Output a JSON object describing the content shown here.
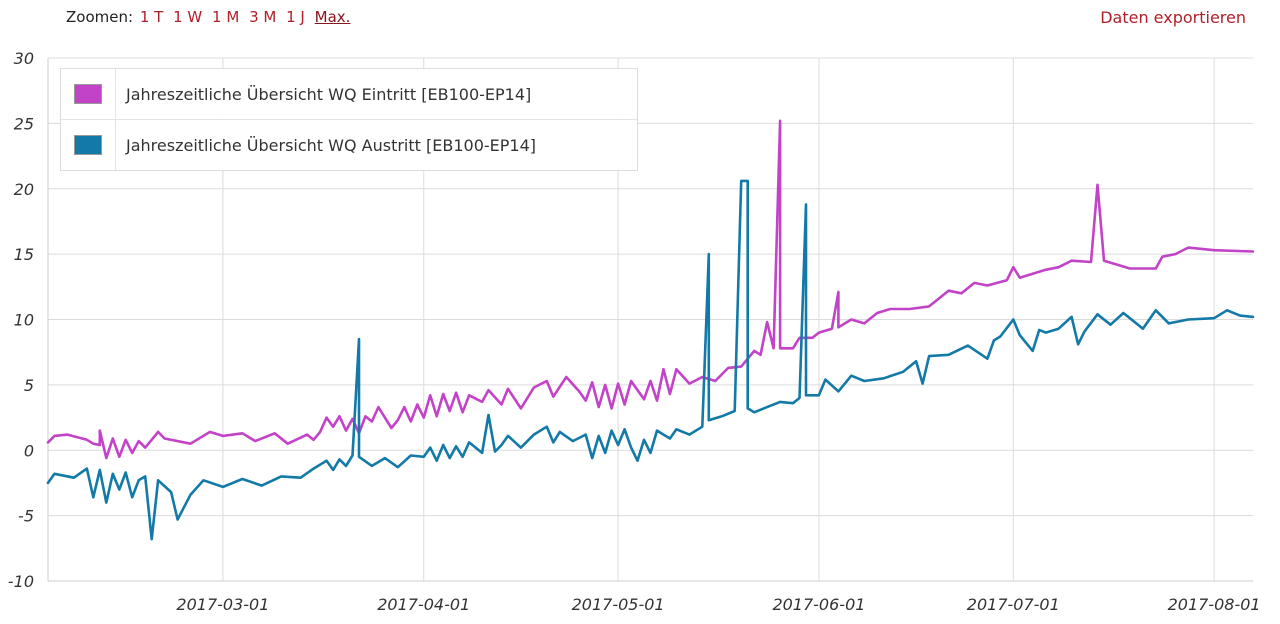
{
  "toolbar": {
    "zoom_label": "Zoomen:",
    "zoom_options": [
      {
        "label": "1 T",
        "active": false
      },
      {
        "label": "1 W",
        "active": false
      },
      {
        "label": "1 M",
        "active": false
      },
      {
        "label": "3 M",
        "active": false
      },
      {
        "label": "1 J",
        "active": false
      },
      {
        "label": "Max.",
        "active": true
      }
    ],
    "export_label": "Daten exportieren"
  },
  "chart_data": {
    "type": "line",
    "title": "",
    "xlabel": "",
    "ylabel": "",
    "x_type": "date",
    "xlim": [
      "2017-02-02",
      "2017-08-07"
    ],
    "ylim": [
      -10,
      30
    ],
    "y_ticks": [
      -10,
      -5,
      0,
      5,
      10,
      15,
      20,
      25,
      30
    ],
    "x_ticks": [
      "2017-03-01",
      "2017-04-01",
      "2017-05-01",
      "2017-06-01",
      "2017-07-01",
      "2017-08-01"
    ],
    "grid": true,
    "legend_position": "top-left",
    "series": [
      {
        "name": "Jahreszeitliche Übersicht WQ Eintritt [EB100-EP14]",
        "color": "#c243c8",
        "points": [
          [
            "2017-02-02",
            0.6
          ],
          [
            "2017-02-03",
            1.1
          ],
          [
            "2017-02-05",
            1.2
          ],
          [
            "2017-02-08",
            0.8
          ],
          [
            "2017-02-09",
            0.5
          ],
          [
            "2017-02-10",
            0.4
          ],
          [
            "2017-02-10",
            1.5
          ],
          [
            "2017-02-11",
            -0.6
          ],
          [
            "2017-02-12",
            0.9
          ],
          [
            "2017-02-13",
            -0.5
          ],
          [
            "2017-02-14",
            0.8
          ],
          [
            "2017-02-15",
            -0.2
          ],
          [
            "2017-02-16",
            0.7
          ],
          [
            "2017-02-17",
            0.2
          ],
          [
            "2017-02-18",
            0.8
          ],
          [
            "2017-02-19",
            1.4
          ],
          [
            "2017-02-20",
            0.9
          ],
          [
            "2017-02-24",
            0.5
          ],
          [
            "2017-02-27",
            1.4
          ],
          [
            "2017-03-01",
            1.1
          ],
          [
            "2017-03-04",
            1.3
          ],
          [
            "2017-03-06",
            0.7
          ],
          [
            "2017-03-09",
            1.3
          ],
          [
            "2017-03-11",
            0.5
          ],
          [
            "2017-03-14",
            1.2
          ],
          [
            "2017-03-15",
            0.8
          ],
          [
            "2017-03-16",
            1.4
          ],
          [
            "2017-03-17",
            2.5
          ],
          [
            "2017-03-18",
            1.8
          ],
          [
            "2017-03-19",
            2.6
          ],
          [
            "2017-03-20",
            1.5
          ],
          [
            "2017-03-21",
            2.4
          ],
          [
            "2017-03-22",
            1.3
          ],
          [
            "2017-03-23",
            2.6
          ],
          [
            "2017-03-24",
            2.2
          ],
          [
            "2017-03-25",
            3.3
          ],
          [
            "2017-03-26",
            2.5
          ],
          [
            "2017-03-27",
            1.7
          ],
          [
            "2017-03-28",
            2.3
          ],
          [
            "2017-03-29",
            3.3
          ],
          [
            "2017-03-30",
            2.2
          ],
          [
            "2017-03-31",
            3.5
          ],
          [
            "2017-04-01",
            2.5
          ],
          [
            "2017-04-02",
            4.2
          ],
          [
            "2017-04-03",
            2.6
          ],
          [
            "2017-04-04",
            4.3
          ],
          [
            "2017-04-05",
            3.0
          ],
          [
            "2017-04-06",
            4.4
          ],
          [
            "2017-04-07",
            2.9
          ],
          [
            "2017-04-08",
            4.2
          ],
          [
            "2017-04-10",
            3.7
          ],
          [
            "2017-04-11",
            4.6
          ],
          [
            "2017-04-13",
            3.5
          ],
          [
            "2017-04-14",
            4.7
          ],
          [
            "2017-04-16",
            3.2
          ],
          [
            "2017-04-18",
            4.8
          ],
          [
            "2017-04-20",
            5.3
          ],
          [
            "2017-04-21",
            4.1
          ],
          [
            "2017-04-23",
            5.6
          ],
          [
            "2017-04-25",
            4.5
          ],
          [
            "2017-04-26",
            3.8
          ],
          [
            "2017-04-27",
            5.2
          ],
          [
            "2017-04-28",
            3.3
          ],
          [
            "2017-04-29",
            5.0
          ],
          [
            "2017-04-30",
            3.2
          ],
          [
            "2017-05-01",
            5.1
          ],
          [
            "2017-05-02",
            3.5
          ],
          [
            "2017-05-03",
            5.3
          ],
          [
            "2017-05-05",
            3.9
          ],
          [
            "2017-05-06",
            5.3
          ],
          [
            "2017-05-07",
            3.8
          ],
          [
            "2017-05-08",
            6.2
          ],
          [
            "2017-05-09",
            4.3
          ],
          [
            "2017-05-10",
            6.2
          ],
          [
            "2017-05-12",
            5.1
          ],
          [
            "2017-05-14",
            5.6
          ],
          [
            "2017-05-16",
            5.3
          ],
          [
            "2017-05-18",
            6.3
          ],
          [
            "2017-05-20",
            6.4
          ],
          [
            "2017-05-22",
            7.6
          ],
          [
            "2017-05-23",
            7.3
          ],
          [
            "2017-05-24",
            9.8
          ],
          [
            "2017-05-25",
            7.8
          ],
          [
            "2017-05-26",
            25.2
          ],
          [
            "2017-05-26",
            7.8
          ],
          [
            "2017-05-28",
            7.8
          ],
          [
            "2017-05-29",
            8.6
          ],
          [
            "2017-05-31",
            8.6
          ],
          [
            "2017-06-01",
            9.0
          ],
          [
            "2017-06-03",
            9.3
          ],
          [
            "2017-06-04",
            12.1
          ],
          [
            "2017-06-04",
            9.4
          ],
          [
            "2017-06-06",
            10.0
          ],
          [
            "2017-06-08",
            9.7
          ],
          [
            "2017-06-10",
            10.5
          ],
          [
            "2017-06-12",
            10.8
          ],
          [
            "2017-06-15",
            10.8
          ],
          [
            "2017-06-18",
            11.0
          ],
          [
            "2017-06-20",
            11.8
          ],
          [
            "2017-06-21",
            12.2
          ],
          [
            "2017-06-23",
            12.0
          ],
          [
            "2017-06-25",
            12.8
          ],
          [
            "2017-06-27",
            12.6
          ],
          [
            "2017-06-30",
            13.0
          ],
          [
            "2017-07-01",
            14.0
          ],
          [
            "2017-07-02",
            13.2
          ],
          [
            "2017-07-04",
            13.5
          ],
          [
            "2017-07-06",
            13.8
          ],
          [
            "2017-07-08",
            14.0
          ],
          [
            "2017-07-10",
            14.5
          ],
          [
            "2017-07-13",
            14.4
          ],
          [
            "2017-07-14",
            20.3
          ],
          [
            "2017-07-15",
            14.5
          ],
          [
            "2017-07-17",
            14.2
          ],
          [
            "2017-07-19",
            13.9
          ],
          [
            "2017-07-23",
            13.9
          ],
          [
            "2017-07-24",
            14.8
          ],
          [
            "2017-07-26",
            15.0
          ],
          [
            "2017-07-28",
            15.5
          ],
          [
            "2017-08-01",
            15.3
          ],
          [
            "2017-08-07",
            15.2
          ]
        ]
      },
      {
        "name": "Jahreszeitliche Übersicht WQ Austritt [EB100-EP14]",
        "color": "#137aa8",
        "points": [
          [
            "2017-02-02",
            -2.5
          ],
          [
            "2017-02-03",
            -1.8
          ],
          [
            "2017-02-06",
            -2.1
          ],
          [
            "2017-02-08",
            -1.4
          ],
          [
            "2017-02-09",
            -3.6
          ],
          [
            "2017-02-10",
            -1.5
          ],
          [
            "2017-02-11",
            -4.0
          ],
          [
            "2017-02-12",
            -1.8
          ],
          [
            "2017-02-13",
            -3.0
          ],
          [
            "2017-02-14",
            -1.7
          ],
          [
            "2017-02-15",
            -3.6
          ],
          [
            "2017-02-16",
            -2.3
          ],
          [
            "2017-02-17",
            -2.0
          ],
          [
            "2017-02-18",
            -6.8
          ],
          [
            "2017-02-19",
            -2.3
          ],
          [
            "2017-02-21",
            -3.2
          ],
          [
            "2017-02-22",
            -5.3
          ],
          [
            "2017-02-24",
            -3.4
          ],
          [
            "2017-02-26",
            -2.3
          ],
          [
            "2017-03-01",
            -2.8
          ],
          [
            "2017-03-04",
            -2.2
          ],
          [
            "2017-03-07",
            -2.7
          ],
          [
            "2017-03-10",
            -2.0
          ],
          [
            "2017-03-13",
            -2.1
          ],
          [
            "2017-03-15",
            -1.4
          ],
          [
            "2017-03-17",
            -0.8
          ],
          [
            "2017-03-18",
            -1.5
          ],
          [
            "2017-03-19",
            -0.7
          ],
          [
            "2017-03-20",
            -1.2
          ],
          [
            "2017-03-21",
            -0.4
          ],
          [
            "2017-03-22",
            8.5
          ],
          [
            "2017-03-22",
            -0.5
          ],
          [
            "2017-03-24",
            -1.2
          ],
          [
            "2017-03-26",
            -0.6
          ],
          [
            "2017-03-28",
            -1.3
          ],
          [
            "2017-03-30",
            -0.4
          ],
          [
            "2017-04-01",
            -0.5
          ],
          [
            "2017-04-02",
            0.2
          ],
          [
            "2017-04-03",
            -0.8
          ],
          [
            "2017-04-04",
            0.4
          ],
          [
            "2017-04-05",
            -0.6
          ],
          [
            "2017-04-06",
            0.3
          ],
          [
            "2017-04-07",
            -0.5
          ],
          [
            "2017-04-08",
            0.6
          ],
          [
            "2017-04-10",
            -0.2
          ],
          [
            "2017-04-11",
            2.7
          ],
          [
            "2017-04-12",
            -0.1
          ],
          [
            "2017-04-13",
            0.4
          ],
          [
            "2017-04-14",
            1.1
          ],
          [
            "2017-04-16",
            0.2
          ],
          [
            "2017-04-18",
            1.2
          ],
          [
            "2017-04-20",
            1.8
          ],
          [
            "2017-04-21",
            0.6
          ],
          [
            "2017-04-22",
            1.4
          ],
          [
            "2017-04-24",
            0.7
          ],
          [
            "2017-04-26",
            1.2
          ],
          [
            "2017-04-27",
            -0.6
          ],
          [
            "2017-04-28",
            1.1
          ],
          [
            "2017-04-29",
            -0.2
          ],
          [
            "2017-04-30",
            1.5
          ],
          [
            "2017-05-01",
            0.4
          ],
          [
            "2017-05-02",
            1.6
          ],
          [
            "2017-05-03",
            0.2
          ],
          [
            "2017-05-04",
            -0.8
          ],
          [
            "2017-05-05",
            0.8
          ],
          [
            "2017-05-06",
            -0.2
          ],
          [
            "2017-05-07",
            1.5
          ],
          [
            "2017-05-09",
            0.9
          ],
          [
            "2017-05-10",
            1.6
          ],
          [
            "2017-05-12",
            1.2
          ],
          [
            "2017-05-14",
            1.8
          ],
          [
            "2017-05-15",
            15.0
          ],
          [
            "2017-05-15",
            2.3
          ],
          [
            "2017-05-17",
            2.6
          ],
          [
            "2017-05-19",
            3.0
          ],
          [
            "2017-05-20",
            20.6
          ],
          [
            "2017-05-21",
            20.6
          ],
          [
            "2017-05-21",
            3.2
          ],
          [
            "2017-05-22",
            2.9
          ],
          [
            "2017-05-24",
            3.3
          ],
          [
            "2017-05-26",
            3.7
          ],
          [
            "2017-05-28",
            3.6
          ],
          [
            "2017-05-29",
            4.0
          ],
          [
            "2017-05-30",
            18.8
          ],
          [
            "2017-05-30",
            4.2
          ],
          [
            "2017-06-01",
            4.2
          ],
          [
            "2017-06-02",
            5.4
          ],
          [
            "2017-06-04",
            4.5
          ],
          [
            "2017-06-06",
            5.7
          ],
          [
            "2017-06-08",
            5.3
          ],
          [
            "2017-06-11",
            5.5
          ],
          [
            "2017-06-14",
            6.0
          ],
          [
            "2017-06-16",
            6.8
          ],
          [
            "2017-06-17",
            5.1
          ],
          [
            "2017-06-18",
            7.2
          ],
          [
            "2017-06-21",
            7.3
          ],
          [
            "2017-06-24",
            8.0
          ],
          [
            "2017-06-27",
            7.0
          ],
          [
            "2017-06-28",
            8.4
          ],
          [
            "2017-06-29",
            8.7
          ],
          [
            "2017-07-01",
            10.0
          ],
          [
            "2017-07-02",
            8.8
          ],
          [
            "2017-07-04",
            7.6
          ],
          [
            "2017-07-05",
            9.2
          ],
          [
            "2017-07-06",
            9.0
          ],
          [
            "2017-07-08",
            9.3
          ],
          [
            "2017-07-10",
            10.2
          ],
          [
            "2017-07-11",
            8.1
          ],
          [
            "2017-07-12",
            9.1
          ],
          [
            "2017-07-14",
            10.4
          ],
          [
            "2017-07-16",
            9.6
          ],
          [
            "2017-07-18",
            10.5
          ],
          [
            "2017-07-21",
            9.3
          ],
          [
            "2017-07-23",
            10.7
          ],
          [
            "2017-07-25",
            9.7
          ],
          [
            "2017-07-28",
            10.0
          ],
          [
            "2017-08-01",
            10.1
          ],
          [
            "2017-08-03",
            10.7
          ],
          [
            "2017-08-05",
            10.3
          ],
          [
            "2017-08-07",
            10.2
          ]
        ]
      }
    ]
  }
}
